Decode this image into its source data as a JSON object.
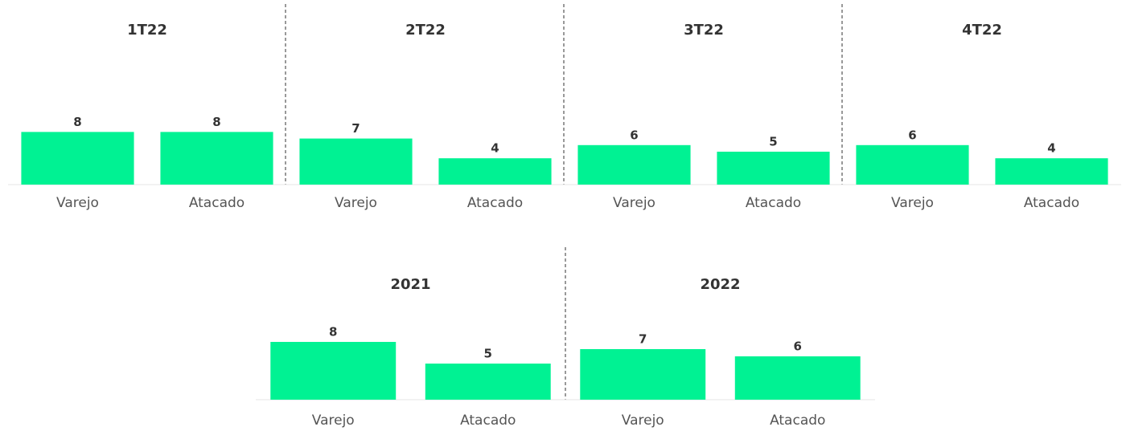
{
  "chart_data": [
    {
      "type": "bar",
      "title": "1T22",
      "categories": [
        "Varejo",
        "Atacado"
      ],
      "values": [
        8,
        8
      ],
      "color": "#00f293",
      "ylim": [
        0,
        10
      ]
    },
    {
      "type": "bar",
      "title": "2T22",
      "categories": [
        "Varejo",
        "Atacado"
      ],
      "values": [
        7,
        4
      ],
      "color": "#00f293",
      "ylim": [
        0,
        10
      ]
    },
    {
      "type": "bar",
      "title": "3T22",
      "categories": [
        "Varejo",
        "Atacado"
      ],
      "values": [
        6,
        5
      ],
      "color": "#00f293",
      "ylim": [
        0,
        10
      ]
    },
    {
      "type": "bar",
      "title": "4T22",
      "categories": [
        "Varejo",
        "Atacado"
      ],
      "values": [
        6,
        4
      ],
      "color": "#00f293",
      "ylim": [
        0,
        10
      ]
    },
    {
      "type": "bar",
      "title": "2021",
      "categories": [
        "Varejo",
        "Atacado"
      ],
      "values": [
        8,
        5
      ],
      "color": "#00f293",
      "ylim": [
        0,
        10
      ]
    },
    {
      "type": "bar",
      "title": "2022",
      "categories": [
        "Varejo",
        "Atacado"
      ],
      "values": [
        7,
        6
      ],
      "color": "#00f293",
      "ylim": [
        0,
        10
      ]
    }
  ]
}
